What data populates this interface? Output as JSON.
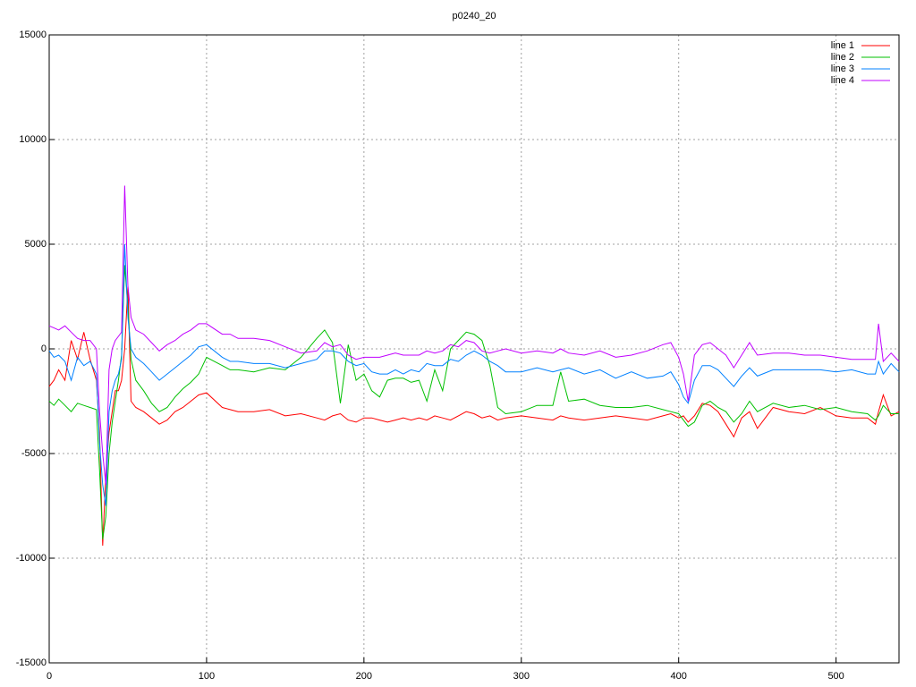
{
  "chart_data": {
    "type": "line",
    "title": "p0240_20",
    "x": [
      0,
      3,
      6,
      10,
      14,
      18,
      22,
      26,
      30,
      32,
      34,
      36,
      38,
      40,
      42,
      44,
      46,
      48,
      50,
      52,
      55,
      60,
      65,
      70,
      75,
      80,
      85,
      90,
      95,
      100,
      110,
      115,
      120,
      130,
      140,
      150,
      160,
      170,
      175,
      180,
      185,
      190,
      195,
      200,
      205,
      210,
      215,
      220,
      225,
      230,
      235,
      240,
      245,
      250,
      255,
      260,
      265,
      270,
      275,
      280,
      285,
      290,
      300,
      310,
      320,
      325,
      330,
      340,
      350,
      360,
      370,
      380,
      390,
      395,
      400,
      403,
      406,
      410,
      415,
      420,
      425,
      430,
      435,
      440,
      445,
      450,
      460,
      470,
      480,
      490,
      500,
      510,
      520,
      525,
      527,
      530,
      535,
      540
    ],
    "series": [
      {
        "name": "line 1",
        "color": "#ff0000",
        "values": [
          -1800,
          -1500,
          -1000,
          -1500,
          400,
          -500,
          800,
          -500,
          -1500,
          -4000,
          -9400,
          -6000,
          -4000,
          -3000,
          -2000,
          -2000,
          -1500,
          0,
          3000,
          -2500,
          -2800,
          -3000,
          -3300,
          -3600,
          -3400,
          -3000,
          -2800,
          -2500,
          -2200,
          -2100,
          -2800,
          -2900,
          -3000,
          -3000,
          -2900,
          -3200,
          -3100,
          -3300,
          -3400,
          -3200,
          -3100,
          -3400,
          -3500,
          -3300,
          -3300,
          -3400,
          -3500,
          -3400,
          -3300,
          -3400,
          -3300,
          -3400,
          -3200,
          -3300,
          -3400,
          -3200,
          -3000,
          -3100,
          -3300,
          -3200,
          -3400,
          -3300,
          -3200,
          -3300,
          -3400,
          -3200,
          -3300,
          -3400,
          -3300,
          -3200,
          -3300,
          -3400,
          -3200,
          -3100,
          -3300,
          -3200,
          -3500,
          -3200,
          -2600,
          -2700,
          -3000,
          -3600,
          -4200,
          -3300,
          -3000,
          -3800,
          -2800,
          -3000,
          -3100,
          -2800,
          -3200,
          -3300,
          -3300,
          -3600,
          -3000,
          -2200,
          -3200,
          -3000
        ]
      },
      {
        "name": "line 2",
        "color": "#00c000",
        "values": [
          -2500,
          -2700,
          -2400,
          -2700,
          -3000,
          -2600,
          -2700,
          -2800,
          -2900,
          -5800,
          -9100,
          -8000,
          -5000,
          -3500,
          -2500,
          -1500,
          -300,
          4000,
          2000,
          -500,
          -1500,
          -2000,
          -2600,
          -3000,
          -2800,
          -2300,
          -1900,
          -1600,
          -1200,
          -400,
          -800,
          -1000,
          -1000,
          -1100,
          -900,
          -1000,
          -400,
          500,
          900,
          300,
          -2600,
          200,
          -1500,
          -1200,
          -2000,
          -2300,
          -1500,
          -1400,
          -1400,
          -1600,
          -1500,
          -2500,
          -1000,
          -2000,
          0,
          400,
          800,
          700,
          400,
          -800,
          -2800,
          -3100,
          -3000,
          -2700,
          -2700,
          -1100,
          -2500,
          -2400,
          -2700,
          -2800,
          -2800,
          -2700,
          -2900,
          -3000,
          -3100,
          -3400,
          -3700,
          -3500,
          -2700,
          -2500,
          -2800,
          -3000,
          -3500,
          -3100,
          -2500,
          -3000,
          -2600,
          -2800,
          -2700,
          -2900,
          -2800,
          -3000,
          -3100,
          -3400,
          -3200,
          -2700,
          -3100,
          -3100
        ]
      },
      {
        "name": "line 3",
        "color": "#0080ff",
        "values": [
          -100,
          -400,
          -300,
          -600,
          -1500,
          -400,
          -800,
          -600,
          -1200,
          -4500,
          -6500,
          -7500,
          -3000,
          -2000,
          -1500,
          -1200,
          -500,
          5000,
          1500,
          0,
          -400,
          -700,
          -1100,
          -1500,
          -1200,
          -900,
          -600,
          -300,
          100,
          200,
          -400,
          -600,
          -600,
          -700,
          -700,
          -900,
          -700,
          -500,
          -100,
          -100,
          -200,
          -600,
          -800,
          -700,
          -1100,
          -1200,
          -1200,
          -1000,
          -1200,
          -1000,
          -1100,
          -700,
          -800,
          -800,
          -500,
          -600,
          -300,
          -100,
          -300,
          -600,
          -800,
          -1100,
          -1100,
          -900,
          -1100,
          -1000,
          -900,
          -1200,
          -1000,
          -1400,
          -1100,
          -1400,
          -1300,
          -1100,
          -1700,
          -2300,
          -2600,
          -1500,
          -800,
          -800,
          -1000,
          -1400,
          -1800,
          -1300,
          -900,
          -1300,
          -1000,
          -1000,
          -1000,
          -1000,
          -1100,
          -1000,
          -1200,
          -1200,
          -600,
          -1200,
          -700,
          -1100
        ]
      },
      {
        "name": "line 4",
        "color": "#c000ff",
        "values": [
          1100,
          1000,
          900,
          1100,
          800,
          500,
          400,
          400,
          0,
          -3000,
          -5000,
          -6500,
          -1000,
          0,
          400,
          600,
          800,
          7800,
          3000,
          1500,
          900,
          700,
          300,
          -100,
          200,
          400,
          700,
          900,
          1200,
          1200,
          700,
          700,
          500,
          500,
          400,
          100,
          -200,
          -100,
          300,
          100,
          200,
          -300,
          -500,
          -400,
          -400,
          -400,
          -300,
          -200,
          -300,
          -300,
          -300,
          -100,
          -200,
          -100,
          200,
          100,
          400,
          300,
          -100,
          -200,
          -100,
          0,
          -200,
          -100,
          -200,
          0,
          -200,
          -300,
          -100,
          -400,
          -300,
          -100,
          200,
          300,
          -400,
          -1200,
          -2500,
          -300,
          200,
          300,
          0,
          -300,
          -900,
          -300,
          300,
          -300,
          -200,
          -200,
          -300,
          -300,
          -400,
          -500,
          -500,
          -500,
          1200,
          -600,
          -200,
          -600
        ]
      }
    ],
    "xlim": [
      0,
      540
    ],
    "xticks": [
      0,
      100,
      200,
      300,
      400,
      500
    ],
    "ylim": [
      -15000,
      15000
    ],
    "yticks": [
      -15000,
      -10000,
      -5000,
      0,
      5000,
      10000,
      15000
    ],
    "grid": true,
    "legend": "top-right"
  }
}
